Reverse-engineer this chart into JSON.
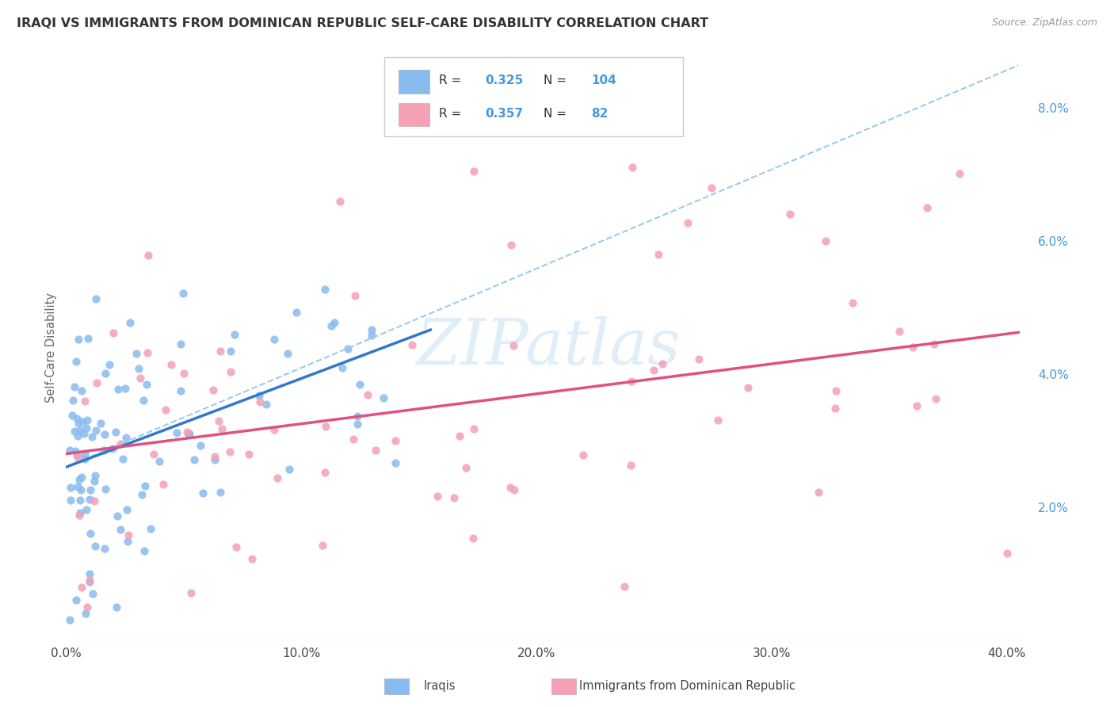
{
  "title": "IRAQI VS IMMIGRANTS FROM DOMINICAN REPUBLIC SELF-CARE DISABILITY CORRELATION CHART",
  "source": "Source: ZipAtlas.com",
  "ylabel": "Self-Care Disability",
  "xlim": [
    0.0,
    0.41
  ],
  "ylim": [
    0.0,
    0.088
  ],
  "x_ticks": [
    0.0,
    0.1,
    0.2,
    0.3,
    0.4
  ],
  "x_tick_labels": [
    "0.0%",
    "10.0%",
    "20.0%",
    "30.0%",
    "40.0%"
  ],
  "y_ticks_right": [
    0.02,
    0.04,
    0.06,
    0.08
  ],
  "y_tick_labels_right": [
    "2.0%",
    "4.0%",
    "6.0%",
    "8.0%"
  ],
  "iraqi_color": "#88bbee",
  "dominican_color": "#f4a0b5",
  "iraqi_line_color": "#3377cc",
  "dominican_line_color": "#e05080",
  "dashed_line_color": "#99ccee",
  "legend_R_iraqi": "0.325",
  "legend_N_iraqi": "104",
  "legend_R_dominican": "0.357",
  "legend_N_dominican": "82",
  "legend_color_num": "#4499dd",
  "watermark_color": "#cce4f5",
  "grid_color": "#dddddd"
}
